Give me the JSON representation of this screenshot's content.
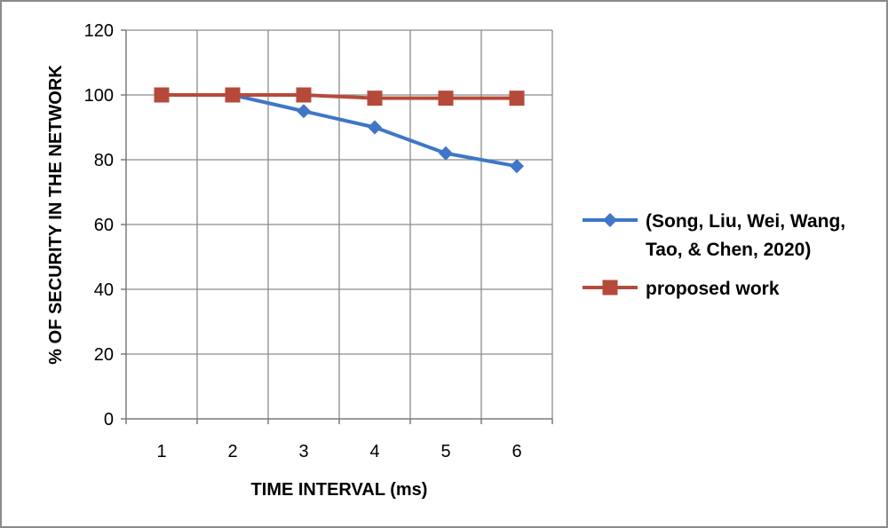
{
  "chart_data": {
    "type": "line",
    "title": "",
    "xlabel": "TIME INTERVAL (ms)",
    "ylabel": "% OF SECURITY IN THE NETWORK",
    "x": [
      1,
      2,
      3,
      4,
      5,
      6
    ],
    "x_tick_labels": [
      "1",
      "2",
      "3",
      "4",
      "5",
      "6"
    ],
    "ylim": [
      0,
      120
    ],
    "y_ticks": [
      0,
      20,
      40,
      60,
      80,
      100,
      120
    ],
    "y_tick_labels": [
      "0",
      "20",
      "40",
      "60",
      "80",
      "100",
      "120"
    ],
    "grid": true,
    "legend_position": "right",
    "series": [
      {
        "name": "(Song, Liu, Wei, Wang, Tao, & Chen, 2020)",
        "legend_lines": [
          "(Song, Liu, Wei, Wang,",
          "Tao, & Chen, 2020)"
        ],
        "values": [
          100,
          100,
          95,
          90,
          82,
          78
        ],
        "color": "#3f76c6",
        "marker": "diamond"
      },
      {
        "name": "proposed work",
        "legend_lines": [
          "proposed work"
        ],
        "values": [
          100,
          100,
          100,
          99,
          99,
          99
        ],
        "color": "#b64a3a",
        "marker": "square"
      }
    ]
  }
}
